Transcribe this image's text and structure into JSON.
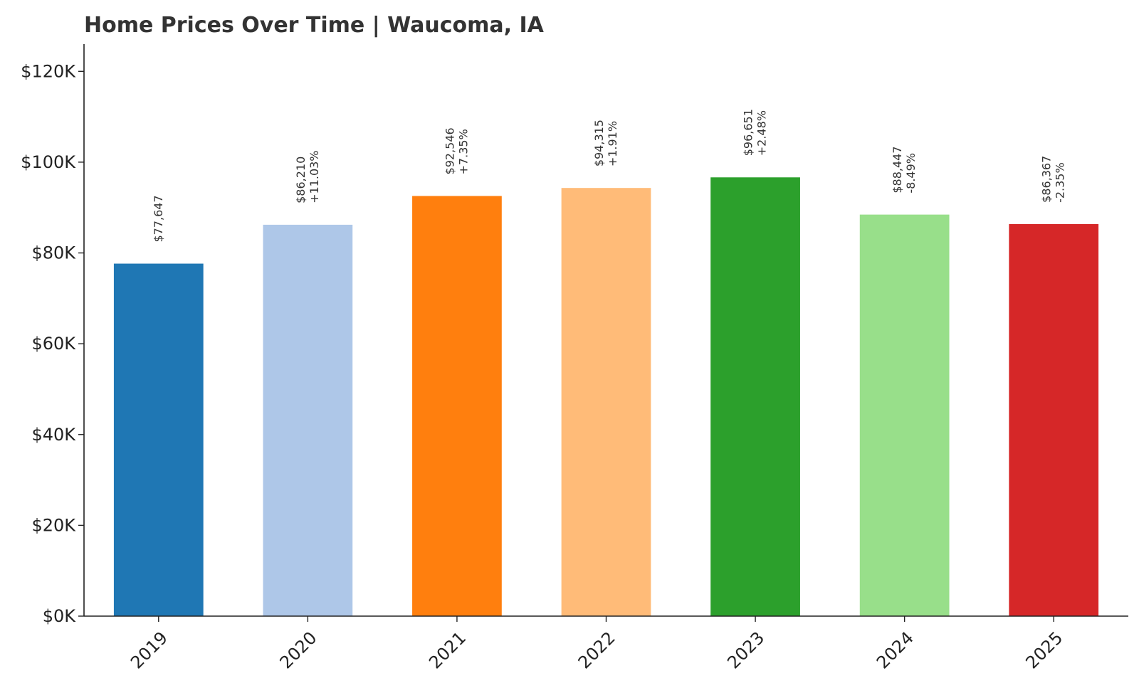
{
  "chart_data": {
    "type": "bar",
    "title": "Home Prices Over Time | Waucoma, IA",
    "xlabel": "",
    "ylabel": "",
    "categories": [
      "2019",
      "2020",
      "2021",
      "2022",
      "2023",
      "2024",
      "2025"
    ],
    "values": [
      77647,
      86210,
      92546,
      94315,
      96651,
      88447,
      86367
    ],
    "value_labels": [
      "$77,647",
      "$86,210",
      "$92,546",
      "$94,315",
      "$96,651",
      "$88,447",
      "$86,367"
    ],
    "change_labels": [
      "",
      "+11.03%",
      "+7.35%",
      "+1.91%",
      "+2.48%",
      "-8.49%",
      "-2.35%"
    ],
    "colors": [
      "#1f77b4",
      "#aec7e8",
      "#ff7f0e",
      "#ffbb78",
      "#2ca02c",
      "#98df8a",
      "#d62728"
    ],
    "ylim": [
      0,
      126000
    ],
    "yticks": [
      0,
      20000,
      40000,
      60000,
      80000,
      100000,
      120000
    ],
    "ytick_labels": [
      "$0K",
      "$20K",
      "$40K",
      "$60K",
      "$80K",
      "$100K",
      "$120K"
    ],
    "grid": false,
    "legend": "none"
  }
}
